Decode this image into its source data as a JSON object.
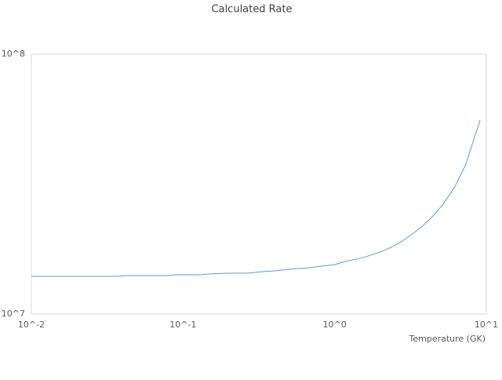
{
  "chart_data": {
    "type": "line",
    "title": "Calculated Rate",
    "x_label": "Temperature (GK)",
    "x_scale": "log",
    "y_scale": "log",
    "grid": false,
    "xlim": [
      0.01,
      10
    ],
    "xticks": [
      {
        "value": 0.01,
        "label": "10^-2"
      },
      {
        "value": 0.1,
        "label": "10^-1"
      },
      {
        "value": 1,
        "label": "10^0"
      },
      {
        "value": 10,
        "label": "10^1"
      }
    ],
    "ylim": [
      10000000,
      100000000
    ],
    "yticks": [
      {
        "value": 10000000,
        "label": "10^7"
      },
      {
        "value": 100000000,
        "label": "10^8"
      }
    ],
    "x": [
      0.01,
      0.037,
      0.0417,
      0.08,
      0.09,
      0.13,
      0.146,
      0.196,
      0.264,
      0.334,
      0.4,
      0.5,
      0.68,
      0.82,
      1.0,
      1.17,
      1.4,
      1.67,
      2.0,
      2.3,
      2.7,
      3.15,
      3.7,
      4.35,
      5.2,
      6.2,
      7.3,
      9.1
    ],
    "series": [
      {
        "name": "Calculated Rate",
        "color": "#5b9bd5",
        "values": [
          13960000,
          13960000,
          14060000,
          14060000,
          14160000,
          14160000,
          14260000,
          14360000,
          14360000,
          14560000,
          14660000,
          14860000,
          15070000,
          15290000,
          15500000,
          15940000,
          16280000,
          16740000,
          17330000,
          17940000,
          18840000,
          20050000,
          21490000,
          23530000,
          26490000,
          30860000,
          37500000,
          55750000
        ]
      }
    ]
  }
}
